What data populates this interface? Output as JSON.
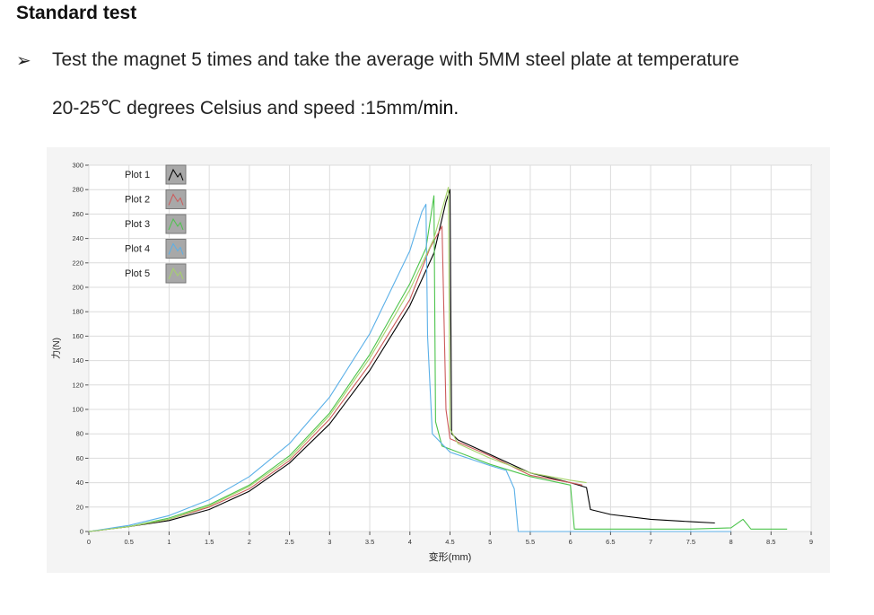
{
  "section": {
    "number": "",
    "title": "Standard test"
  },
  "bullet": {
    "icon": "arrow-bullet-icon",
    "symbol": "➢",
    "line1": "Test the magnet 5 times and take the average with 5MM steel plate at temperature",
    "line2_prefix": "20-25℃  degrees Celsius and speed :15mm/",
    "line2_suffix": "min."
  },
  "chart_data": {
    "type": "line",
    "title": "",
    "xlabel": "变形(mm)",
    "ylabel": "力(N)",
    "xlim": [
      0,
      9
    ],
    "ylim": [
      0,
      300
    ],
    "x_ticks": [
      "0",
      "0.5",
      "1",
      "1.5",
      "2",
      "2.5",
      "3",
      "3.5",
      "4",
      "4.5",
      "5",
      "5.5",
      "6",
      "6.5",
      "7",
      "7.5",
      "8",
      "8.5",
      "9"
    ],
    "y_ticks": [
      "0",
      "20",
      "40",
      "60",
      "80",
      "100",
      "120",
      "140",
      "160",
      "180",
      "200",
      "220",
      "240",
      "260",
      "280",
      "300"
    ],
    "grid": true,
    "legend_position": "top-left",
    "series": [
      {
        "name": "Plot 1",
        "color": "#000000",
        "points": [
          [
            0,
            0
          ],
          [
            0.5,
            4
          ],
          [
            1,
            9
          ],
          [
            1.5,
            18
          ],
          [
            2,
            33
          ],
          [
            2.5,
            56
          ],
          [
            3,
            88
          ],
          [
            3.5,
            132
          ],
          [
            4,
            185
          ],
          [
            4.3,
            228
          ],
          [
            4.45,
            270
          ],
          [
            4.5,
            280
          ],
          [
            4.52,
            80
          ],
          [
            4.6,
            75
          ],
          [
            5,
            63
          ],
          [
            5.5,
            48
          ],
          [
            6,
            40
          ],
          [
            6.2,
            36
          ],
          [
            6.25,
            18
          ],
          [
            6.5,
            14
          ],
          [
            7,
            10
          ],
          [
            7.5,
            8
          ],
          [
            7.8,
            7
          ]
        ]
      },
      {
        "name": "Plot 2",
        "color": "#cc5a5a",
        "points": [
          [
            0,
            0
          ],
          [
            0.5,
            4
          ],
          [
            1,
            10
          ],
          [
            1.5,
            20
          ],
          [
            2,
            35
          ],
          [
            2.5,
            58
          ],
          [
            3,
            92
          ],
          [
            3.5,
            137
          ],
          [
            4,
            190
          ],
          [
            4.25,
            232
          ],
          [
            4.4,
            250
          ],
          [
            4.45,
            100
          ],
          [
            4.5,
            76
          ],
          [
            5,
            62
          ],
          [
            5.5,
            46
          ],
          [
            6,
            40
          ],
          [
            6.15,
            38
          ]
        ]
      },
      {
        "name": "Plot 3",
        "color": "#4cc44c",
        "points": [
          [
            0,
            0
          ],
          [
            0.5,
            4
          ],
          [
            1,
            11
          ],
          [
            1.5,
            22
          ],
          [
            2,
            38
          ],
          [
            2.5,
            62
          ],
          [
            3,
            97
          ],
          [
            3.5,
            145
          ],
          [
            4,
            203
          ],
          [
            4.2,
            232
          ],
          [
            4.3,
            275
          ],
          [
            4.32,
            90
          ],
          [
            4.4,
            70
          ],
          [
            5,
            55
          ],
          [
            5.5,
            45
          ],
          [
            6,
            38
          ],
          [
            6.05,
            2
          ],
          [
            7,
            2
          ],
          [
            7.5,
            2
          ],
          [
            8,
            3
          ],
          [
            8.15,
            10
          ],
          [
            8.25,
            2
          ],
          [
            8.7,
            2
          ]
        ]
      },
      {
        "name": "Plot 4",
        "color": "#5bb0e8",
        "points": [
          [
            0,
            0
          ],
          [
            0.5,
            5
          ],
          [
            1,
            13
          ],
          [
            1.5,
            26
          ],
          [
            2,
            45
          ],
          [
            2.5,
            72
          ],
          [
            3,
            110
          ],
          [
            3.5,
            162
          ],
          [
            4,
            230
          ],
          [
            4.15,
            262
          ],
          [
            4.2,
            268
          ],
          [
            4.22,
            160
          ],
          [
            4.28,
            80
          ],
          [
            4.5,
            65
          ],
          [
            5,
            54
          ],
          [
            5.2,
            50
          ],
          [
            5.3,
            35
          ],
          [
            5.35,
            0
          ],
          [
            6,
            0
          ],
          [
            7,
            0
          ],
          [
            7.5,
            0
          ],
          [
            8,
            0
          ]
        ]
      },
      {
        "name": "Plot 5",
        "color": "#a6d36a",
        "points": [
          [
            0,
            0
          ],
          [
            0.5,
            4
          ],
          [
            1,
            10
          ],
          [
            1.5,
            21
          ],
          [
            2,
            37
          ],
          [
            2.5,
            60
          ],
          [
            3,
            95
          ],
          [
            3.5,
            142
          ],
          [
            4,
            198
          ],
          [
            4.3,
            240
          ],
          [
            4.48,
            282
          ],
          [
            4.5,
            84
          ],
          [
            4.6,
            72
          ],
          [
            5,
            60
          ],
          [
            5.5,
            48
          ],
          [
            6,
            42
          ],
          [
            6.2,
            40
          ]
        ]
      }
    ]
  }
}
